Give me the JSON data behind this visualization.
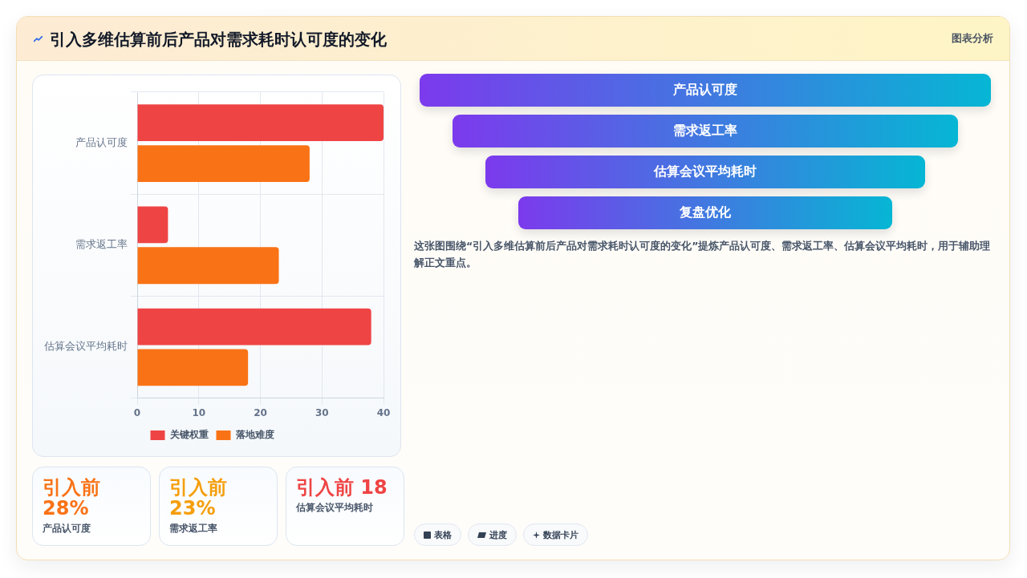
{
  "chart_data": [
    {
      "type": "bar",
      "title": "引入多维估算前后产品对需求耗时认可度的变化",
      "annotations": [
        "图表分析"
      ],
      "orientation": "horizontal",
      "categories": [
        "产品认可度",
        "需求返工率",
        "估算会议平均耗时"
      ],
      "series": [
        {
          "name": "关键权重",
          "color": "#ef4444",
          "values": [
            40,
            5,
            38
          ]
        },
        {
          "name": "落地难度",
          "color": "#f97316",
          "values": [
            28,
            23,
            18
          ]
        }
      ],
      "xlim": [
        0,
        40
      ],
      "xticks": [
        0,
        10,
        20,
        30,
        40
      ],
      "grid": true,
      "legend": "bottom"
    },
    {
      "type": "other",
      "categories": [
        "产品认可度",
        "需求返工率",
        "估算会议平均耗时"
      ],
      "value_labels": [
        "引入前 28%",
        "引入前 23%",
        "引入前 18"
      ]
    },
    {
      "type": "other",
      "categories": [
        "产品认可度",
        "需求返工率",
        "估算会议平均耗时",
        "复盘优化"
      ],
      "annotations": [
        "这张图围绕“引入多维估算前后产品对需求耗时认可度的变化”提炼产品认可度、需求返工率、估算会议平均耗时，用于辅助理解正文重点。",
        "表格",
        "进度",
        "数据卡片"
      ]
    }
  ]
}
